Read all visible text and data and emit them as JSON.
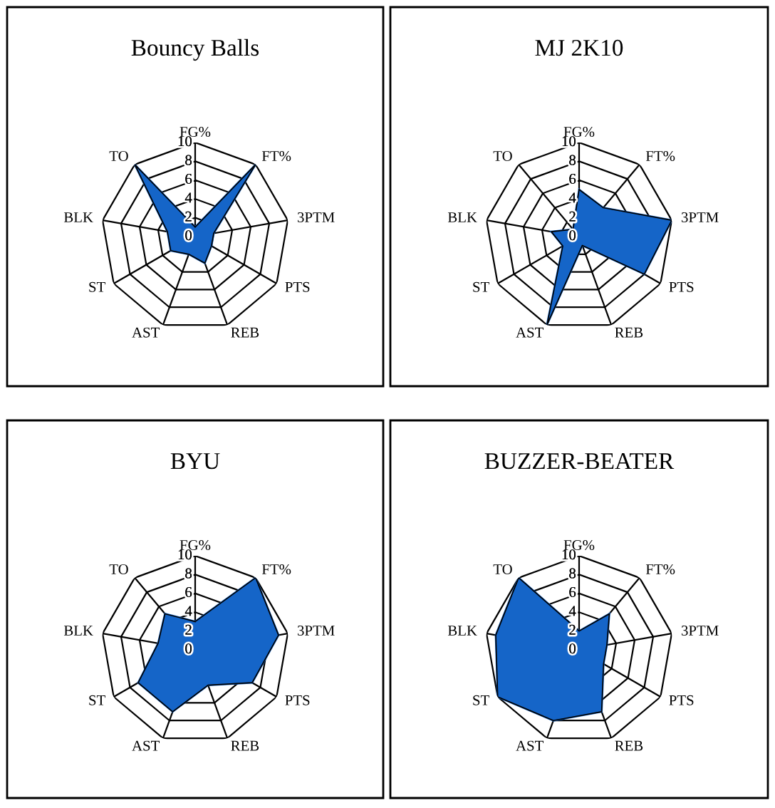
{
  "chart_data": [
    {
      "type": "radar",
      "title": "Bouncy Balls",
      "categories": [
        "FG%",
        "FT%",
        "3PTM",
        "PTS",
        "REB",
        "AST",
        "ST",
        "BLK",
        "TO"
      ],
      "ylim": [
        0,
        10
      ],
      "yticks": [
        0,
        2,
        4,
        6,
        8,
        10
      ],
      "grid": true,
      "series": [
        {
          "color": "#1565c8",
          "values": [
            1,
            10,
            2,
            2,
            3,
            2,
            3,
            3,
            10
          ]
        }
      ]
    },
    {
      "type": "radar",
      "title": "MJ 2K10",
      "categories": [
        "FG%",
        "FT%",
        "3PTM",
        "PTS",
        "REB",
        "AST",
        "ST",
        "BLK",
        "TO"
      ],
      "ylim": [
        0,
        10
      ],
      "yticks": [
        0,
        2,
        4,
        6,
        8,
        10
      ],
      "grid": true,
      "series": [
        {
          "color": "#1565c8",
          "values": [
            5,
            4,
            10,
            8,
            1,
            10,
            2,
            3,
            1
          ]
        }
      ]
    },
    {
      "type": "radar",
      "title": "BYU",
      "categories": [
        "FG%",
        "FT%",
        "3PTM",
        "PTS",
        "REB",
        "AST",
        "ST",
        "BLK",
        "TO"
      ],
      "ylim": [
        0,
        10
      ],
      "yticks": [
        0,
        2,
        4,
        6,
        8,
        10
      ],
      "grid": true,
      "series": [
        {
          "color": "#1565c8",
          "values": [
            3,
            10,
            9,
            7,
            4,
            7,
            7,
            4,
            5
          ]
        }
      ]
    },
    {
      "type": "radar",
      "title": "BUZZER-BEATER",
      "categories": [
        "FG%",
        "FT%",
        "3PTM",
        "PTS",
        "REB",
        "AST",
        "ST",
        "BLK",
        "TO"
      ],
      "ylim": [
        0,
        10
      ],
      "yticks": [
        0,
        2,
        4,
        6,
        8,
        10
      ],
      "grid": true,
      "series": [
        {
          "color": "#1565c8",
          "values": [
            2,
            5,
            3,
            3,
            7,
            8,
            10,
            9,
            10
          ]
        }
      ]
    }
  ]
}
